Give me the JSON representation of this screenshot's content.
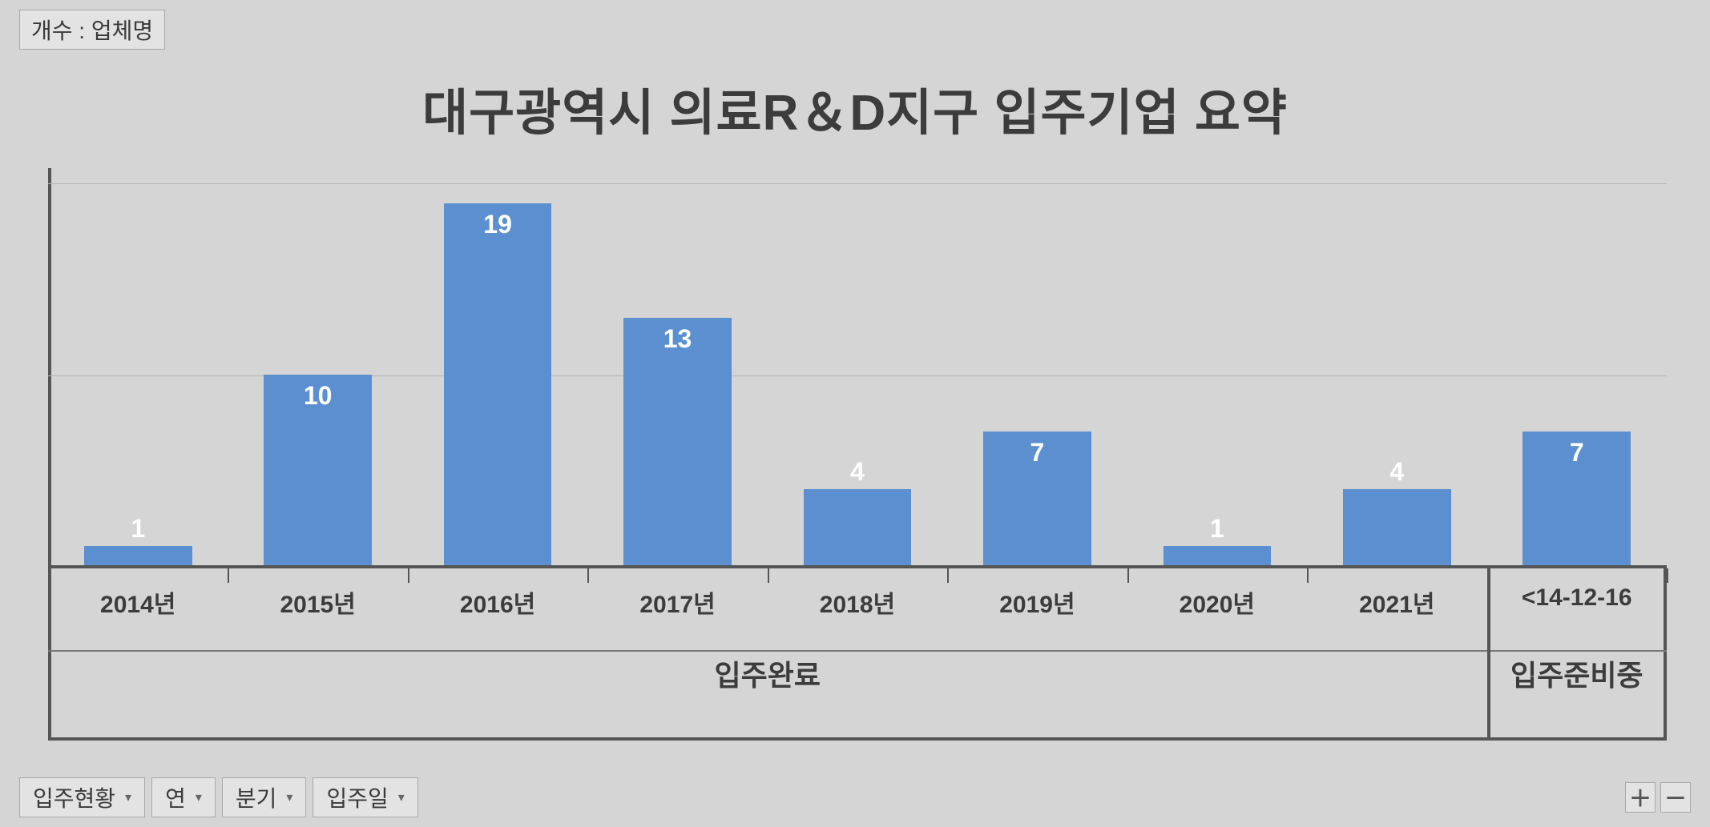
{
  "legend_label": "개수 : 업체명",
  "title": "대구광역시 의료R＆D지구 입주기업 요약",
  "chart": {
    "type": "bar",
    "bar_color": "#5b8fcf",
    "background_color": "#d5d5d5",
    "grid_color": "#b4b4b4",
    "axis_color": "#555555",
    "label_text_color": "#ffffff",
    "axis_text_color": "#3c3c3c",
    "title_fontsize": 62,
    "axis_fontsize": 30,
    "category_fontsize": 36,
    "value_label_fontsize": 32,
    "ymax": 20,
    "gridline_values": [
      10,
      20
    ],
    "categories": [
      {
        "name": "입주완료",
        "span": 8
      },
      {
        "name": "입주준비중",
        "span": 1
      }
    ],
    "bars": [
      {
        "x": "2014년",
        "value": 1,
        "label_inside": false
      },
      {
        "x": "2015년",
        "value": 10,
        "label_inside": true
      },
      {
        "x": "2016년",
        "value": 19,
        "label_inside": true
      },
      {
        "x": "2017년",
        "value": 13,
        "label_inside": true
      },
      {
        "x": "2018년",
        "value": 4,
        "label_inside": false
      },
      {
        "x": "2019년",
        "value": 7,
        "label_inside": true
      },
      {
        "x": "2020년",
        "value": 1,
        "label_inside": false
      },
      {
        "x": "2021년",
        "value": 4,
        "label_inside": false
      },
      {
        "x": "<14-12-16",
        "value": 7,
        "label_inside": true
      }
    ]
  },
  "filters": [
    {
      "label": "입주현황"
    },
    {
      "label": "연"
    },
    {
      "label": "분기"
    },
    {
      "label": "입주일"
    }
  ],
  "zoom": {
    "plus": "＋",
    "minus": "－"
  }
}
